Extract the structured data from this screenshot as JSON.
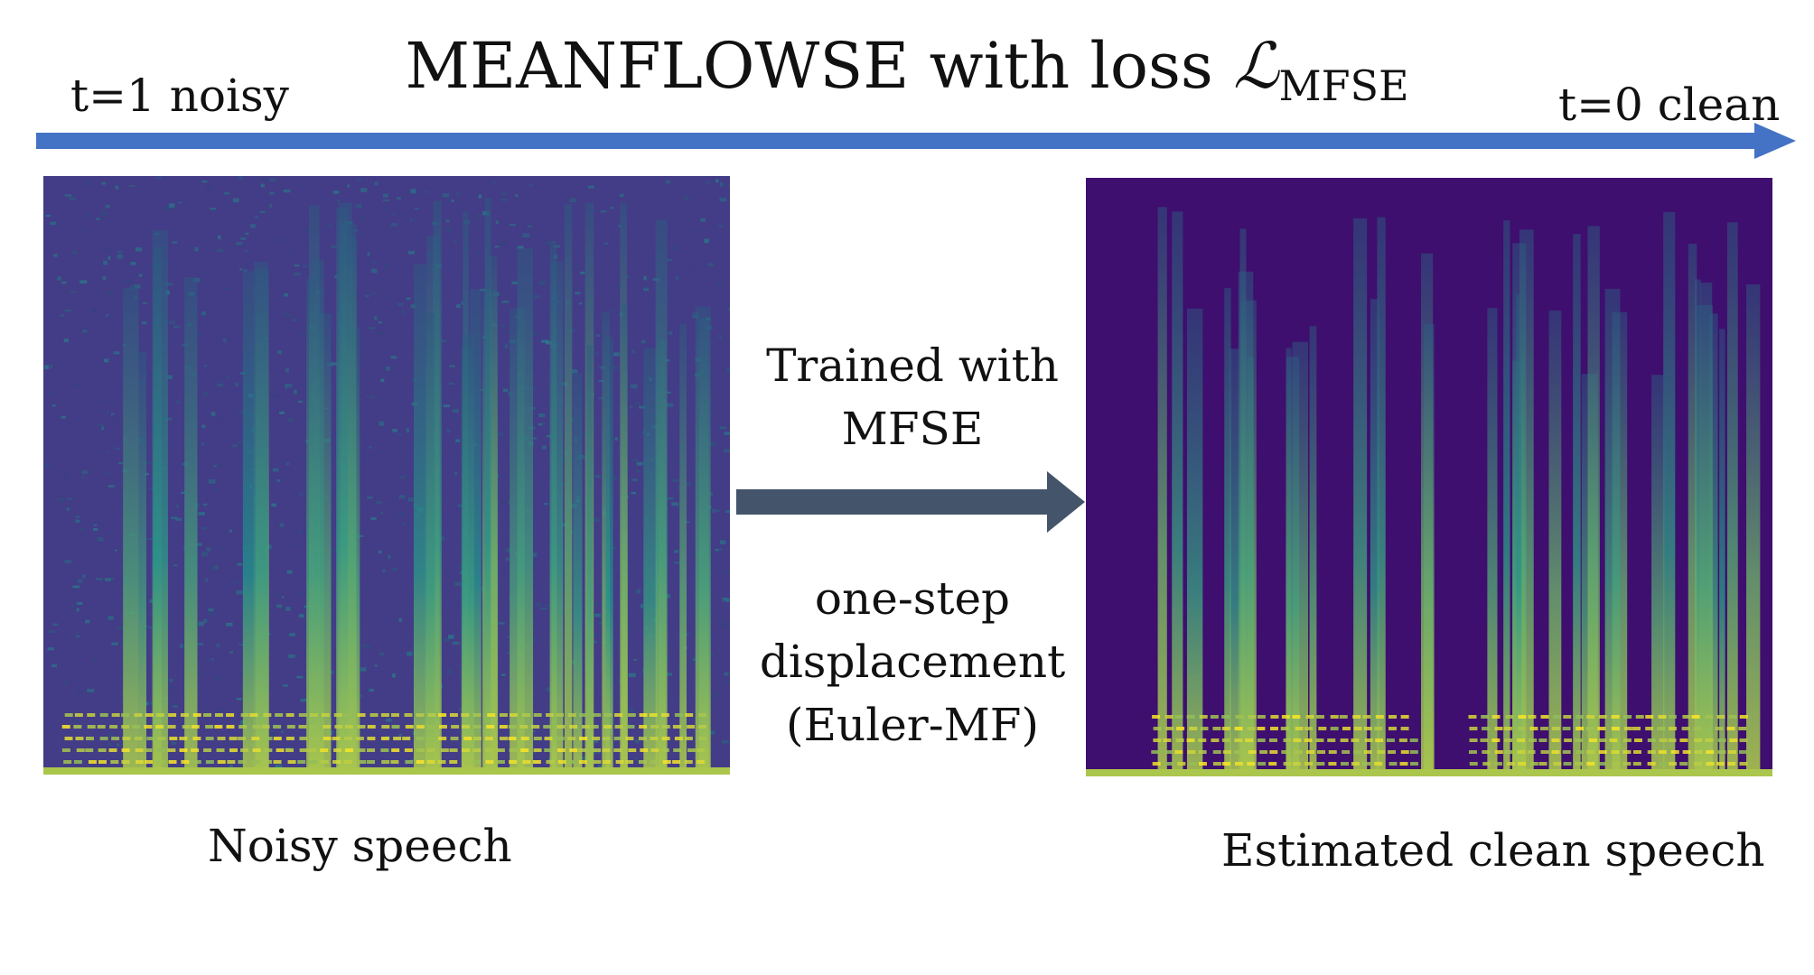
{
  "title": {
    "main": "MEANFLOWSE with loss ",
    "symbol": "ℒ",
    "subscript": "MFSE"
  },
  "timeline": {
    "start_label": "t=1 noisy",
    "end_label": "t=0 clean",
    "color": "#4472C4"
  },
  "spectrograms": {
    "noisy": {
      "caption": "Noisy speech"
    },
    "clean": {
      "caption": "Estimated clean speech"
    }
  },
  "method": {
    "top_lines": [
      "Trained with",
      "MFSE"
    ],
    "bottom_lines": [
      "one-step",
      "displacement",
      "(Euler-MF)"
    ],
    "arrow_color": "#44546A"
  },
  "colormap": {
    "low": "#3b0f70",
    "mid": "#21908d",
    "high": "#fde725"
  }
}
